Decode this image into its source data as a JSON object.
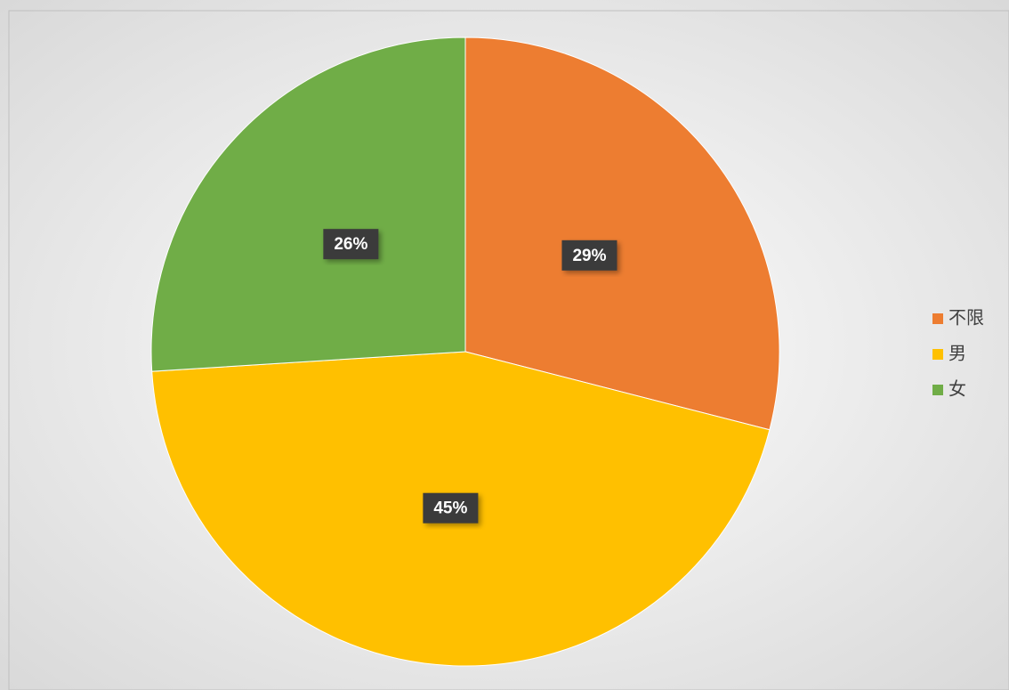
{
  "chart_data": {
    "type": "pie",
    "categories": [
      "不限",
      "男",
      "女"
    ],
    "values": [
      29,
      45,
      26
    ],
    "value_labels": [
      "29%",
      "45%",
      "26%"
    ],
    "colors": [
      "#ed7d31",
      "#ffc000",
      "#70ad47"
    ],
    "legend": "right"
  }
}
